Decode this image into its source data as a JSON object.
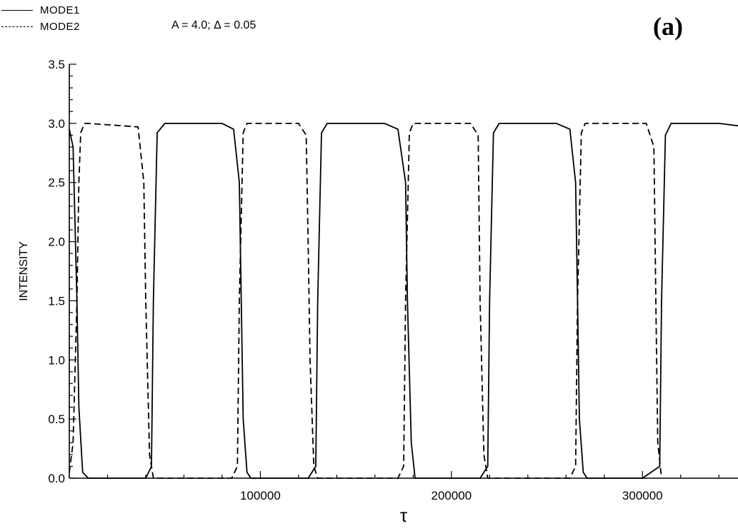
{
  "legend": {
    "items": [
      {
        "label": "MODE1",
        "style": "solid"
      },
      {
        "label": "MODE2",
        "style": "dashed"
      }
    ]
  },
  "params_text": "A = 4.0;  Δ = 0.05",
  "panel_label": "(a)",
  "chart_data": {
    "type": "line",
    "title": "",
    "xlabel": "τ",
    "ylabel": "INTENSITY",
    "xlim": [
      0,
      350000
    ],
    "ylim": [
      0,
      3.5
    ],
    "x_ticks": [
      100000,
      200000,
      300000
    ],
    "x_tick_labels": [
      "100000",
      "200000",
      "300000"
    ],
    "y_ticks": [
      0.0,
      0.5,
      1.0,
      1.5,
      2.0,
      2.5,
      3.0,
      3.5
    ],
    "y_tick_labels": [
      "0.0",
      "0.5",
      "1.0",
      "1.5",
      "2.0",
      "2.5",
      "3.0",
      "3.5"
    ],
    "grid": false,
    "legend_position": "top-left",
    "series": [
      {
        "name": "MODE1",
        "style": "solid",
        "color": "#000000",
        "x": [
          0,
          2000,
          4000,
          5000,
          7000,
          10000,
          40000,
          43000,
          44000,
          46000,
          50000,
          80000,
          86000,
          89000,
          90000,
          91000,
          93000,
          95000,
          125000,
          129000,
          130000,
          132000,
          135000,
          165000,
          172000,
          176000,
          177000,
          179000,
          181000,
          215000,
          219000,
          220000,
          222000,
          225000,
          255000,
          262000,
          265000,
          266000,
          267000,
          269000,
          271000,
          300000,
          309000,
          310000,
          312000,
          315000,
          340000,
          350000
        ],
        "y": [
          2.95,
          2.8,
          1.5,
          0.6,
          0.05,
          0.0,
          0.0,
          0.1,
          1.5,
          2.92,
          3.0,
          3.0,
          2.95,
          2.5,
          1.5,
          0.5,
          0.05,
          0.0,
          0.0,
          0.1,
          1.5,
          2.92,
          3.0,
          3.0,
          2.95,
          2.5,
          1.5,
          0.3,
          0.0,
          0.0,
          0.1,
          1.5,
          2.92,
          3.0,
          3.0,
          2.95,
          2.5,
          1.5,
          0.5,
          0.05,
          0.0,
          0.0,
          0.1,
          1.5,
          2.9,
          3.0,
          3.0,
          2.98
        ]
      },
      {
        "name": "MODE2",
        "style": "dashed",
        "color": "#000000",
        "x": [
          0,
          2000,
          4000,
          5000,
          6000,
          8000,
          10000,
          36000,
          39000,
          40000,
          42000,
          44000,
          85000,
          88000,
          89000,
          91000,
          93000,
          120000,
          124000,
          125000,
          126000,
          128000,
          130000,
          172000,
          175000,
          176000,
          178000,
          180000,
          210000,
          214000,
          215000,
          217000,
          219000,
          262000,
          265000,
          266000,
          268000,
          270000,
          302000,
          306000,
          307000,
          308000,
          310000
        ],
        "y": [
          0.05,
          0.3,
          1.5,
          2.5,
          2.92,
          3.0,
          3.0,
          2.97,
          2.5,
          1.5,
          0.2,
          0.0,
          0.0,
          0.1,
          1.5,
          2.92,
          3.0,
          3.0,
          2.9,
          2.0,
          1.0,
          0.1,
          0.0,
          0.0,
          0.1,
          1.5,
          2.92,
          3.0,
          3.0,
          2.9,
          1.5,
          0.2,
          0.0,
          0.0,
          0.1,
          1.5,
          2.92,
          3.0,
          3.0,
          2.8,
          1.5,
          0.3,
          0.0
        ]
      }
    ]
  }
}
